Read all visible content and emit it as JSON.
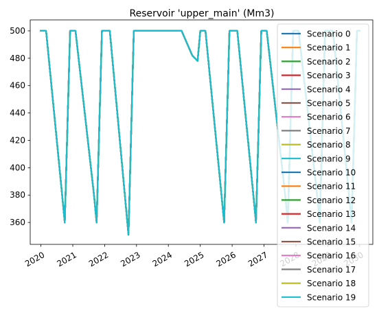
{
  "chart_data": {
    "type": "line",
    "title": "Reservoir 'upper_main' (Mm3)",
    "xlabel": "",
    "ylabel": "",
    "grid": false,
    "legend_placement": "upper-right",
    "xlim": [
      "2019-09-01",
      "2030-06-01"
    ],
    "ylim": [
      344,
      508
    ],
    "x_ticks": [
      "2020",
      "2021",
      "2022",
      "2023",
      "2024",
      "2025",
      "2026",
      "2027",
      "2028",
      "2029",
      "2030"
    ],
    "y_ticks": [
      360,
      380,
      400,
      420,
      440,
      460,
      480,
      500
    ],
    "series": [
      {
        "name": "Scenario 0",
        "color": "#1f77b4"
      },
      {
        "name": "Scenario 1",
        "color": "#ff7f0e"
      },
      {
        "name": "Scenario 2",
        "color": "#2ca02c"
      },
      {
        "name": "Scenario 3",
        "color": "#d62728"
      },
      {
        "name": "Scenario 4",
        "color": "#9467bd"
      },
      {
        "name": "Scenario 5",
        "color": "#8c564b"
      },
      {
        "name": "Scenario 6",
        "color": "#e377c2"
      },
      {
        "name": "Scenario 7",
        "color": "#7f7f7f"
      },
      {
        "name": "Scenario 8",
        "color": "#bcbd22"
      },
      {
        "name": "Scenario 9",
        "color": "#17becf"
      },
      {
        "name": "Scenario 10",
        "color": "#1f77b4"
      },
      {
        "name": "Scenario 11",
        "color": "#ff7f0e"
      },
      {
        "name": "Scenario 12",
        "color": "#2ca02c"
      },
      {
        "name": "Scenario 13",
        "color": "#d62728"
      },
      {
        "name": "Scenario 14",
        "color": "#9467bd"
      },
      {
        "name": "Scenario 15",
        "color": "#8c564b"
      },
      {
        "name": "Scenario 16",
        "color": "#e377c2"
      },
      {
        "name": "Scenario 17",
        "color": "#7f7f7f"
      },
      {
        "name": "Scenario 18",
        "color": "#bcbd22"
      },
      {
        "name": "Scenario 19",
        "color": "#17becf"
      }
    ],
    "shared_series_points": [
      [
        "2020-01-01",
        500
      ],
      [
        "2020-03-01",
        500
      ],
      [
        "2020-09-01",
        380
      ],
      [
        "2020-10-01",
        360
      ],
      [
        "2020-12-01",
        500
      ],
      [
        "2021-02-01",
        500
      ],
      [
        "2021-09-01",
        380
      ],
      [
        "2021-10-01",
        360
      ],
      [
        "2021-12-01",
        500
      ],
      [
        "2022-03-01",
        500
      ],
      [
        "2022-10-01",
        351
      ],
      [
        "2022-12-01",
        500
      ],
      [
        "2024-06-01",
        500
      ],
      [
        "2024-10-01",
        482
      ],
      [
        "2024-12-01",
        478
      ],
      [
        "2025-01-01",
        500
      ],
      [
        "2025-03-01",
        500
      ],
      [
        "2025-09-01",
        380
      ],
      [
        "2025-10-01",
        360
      ],
      [
        "2025-12-01",
        500
      ],
      [
        "2026-03-01",
        500
      ],
      [
        "2026-09-01",
        380
      ],
      [
        "2026-10-01",
        360
      ],
      [
        "2026-12-01",
        500
      ],
      [
        "2027-02-01",
        500
      ],
      [
        "2027-09-01",
        380
      ],
      [
        "2027-10-01",
        360
      ],
      [
        "2027-12-01",
        500
      ],
      [
        "2028-02-01",
        500
      ],
      [
        "2028-09-01",
        380
      ],
      [
        "2028-10-01",
        360
      ],
      [
        "2028-12-01",
        500
      ],
      [
        "2029-03-01",
        500
      ],
      [
        "2029-09-01",
        380
      ],
      [
        "2029-10-01",
        360
      ],
      [
        "2029-12-01",
        500
      ],
      [
        "2030-01-01",
        500
      ]
    ]
  }
}
